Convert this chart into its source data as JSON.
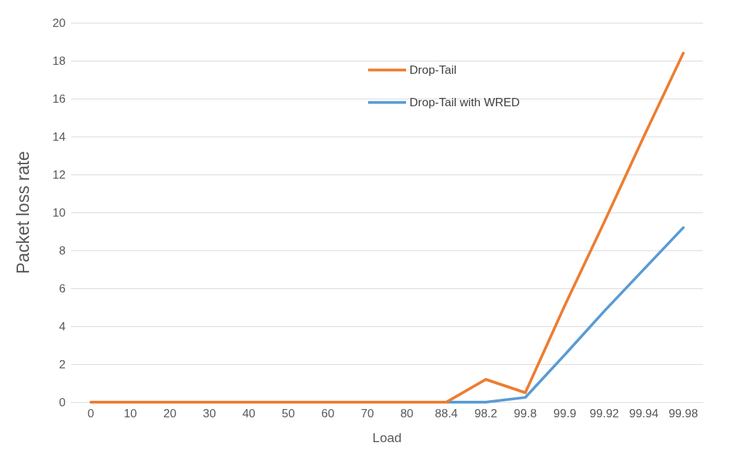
{
  "chart_data": {
    "type": "line",
    "xlabel": "Load",
    "ylabel": "Packet loss rate",
    "categories": [
      "0",
      "10",
      "20",
      "30",
      "40",
      "50",
      "60",
      "70",
      "80",
      "88.4",
      "98.2",
      "99.8",
      "99.9",
      "99.92",
      "99.94",
      "99.98"
    ],
    "series": [
      {
        "name": "Drop-Tail",
        "color": "#ed7d31",
        "values": [
          0,
          0,
          0,
          0,
          0,
          0,
          0,
          0,
          0,
          0,
          1.2,
          0.5,
          5.1,
          9.5,
          14.0,
          18.4
        ]
      },
      {
        "name": "Drop-Tail with WRED",
        "color": "#5b9bd5",
        "values": [
          null,
          null,
          null,
          null,
          null,
          null,
          null,
          null,
          null,
          0,
          0,
          0.25,
          2.5,
          4.8,
          7.0,
          9.2
        ]
      }
    ],
    "ylim": [
      0,
      20
    ],
    "yticks": [
      0,
      2,
      4,
      6,
      8,
      10,
      12,
      14,
      16,
      18,
      20
    ],
    "grid": "y",
    "legend": "top",
    "marker": "none",
    "line_style": "solid"
  }
}
